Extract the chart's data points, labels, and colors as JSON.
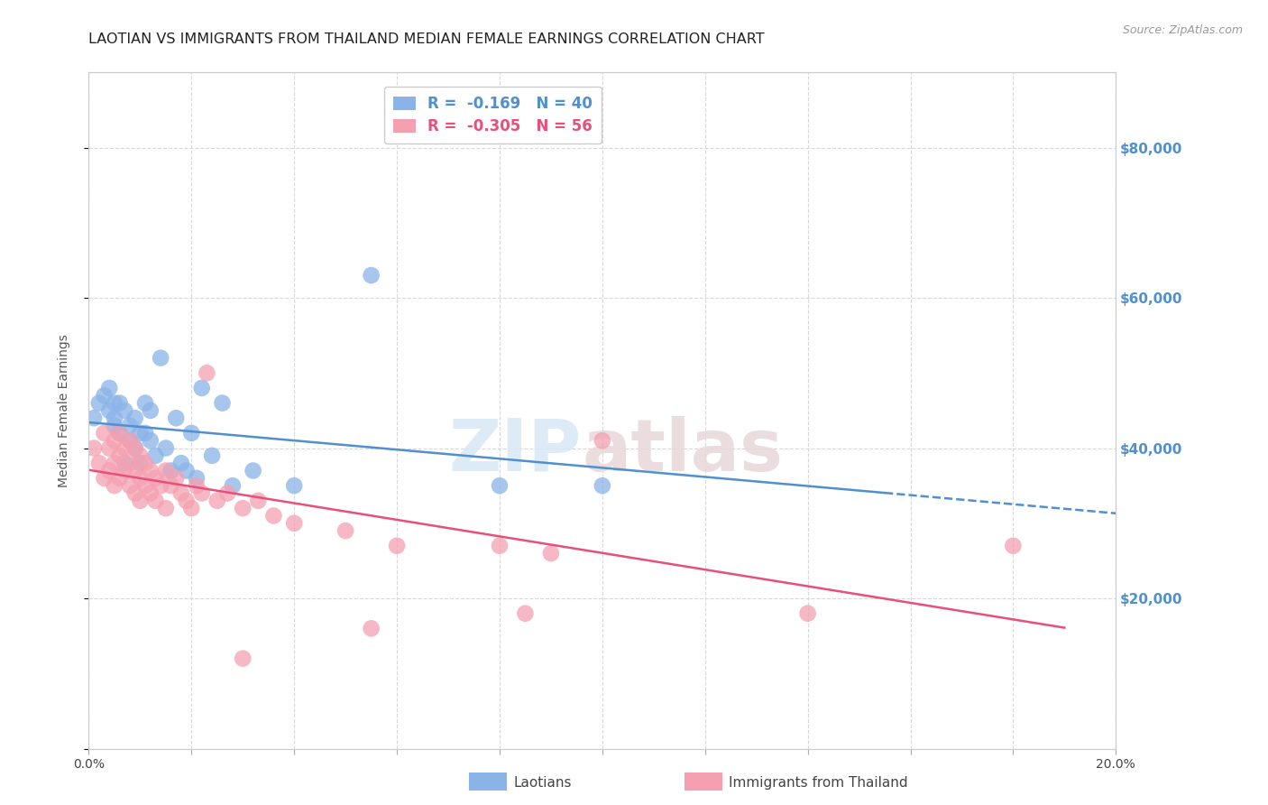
{
  "title": "LAOTIAN VS IMMIGRANTS FROM THAILAND MEDIAN FEMALE EARNINGS CORRELATION CHART",
  "source": "Source: ZipAtlas.com",
  "ylabel": "Median Female Earnings",
  "xlim": [
    0.0,
    0.2
  ],
  "ylim": [
    0,
    90000
  ],
  "yticks": [
    0,
    20000,
    40000,
    60000,
    80000
  ],
  "xticks": [
    0.0,
    0.02,
    0.04,
    0.06,
    0.08,
    0.1,
    0.12,
    0.14,
    0.16,
    0.18,
    0.2
  ],
  "legend_blue_label": "R =  -0.169   N = 40",
  "legend_pink_label": "R =  -0.305   N = 56",
  "blue_color": "#8ab4e8",
  "pink_color": "#f4a0b0",
  "blue_line_color": "#5090d0",
  "pink_line_color": "#e8507a",
  "watermark_zip": "ZIP",
  "watermark_atlas": "atlas",
  "blue_scatter_x": [
    0.001,
    0.002,
    0.003,
    0.004,
    0.004,
    0.005,
    0.005,
    0.005,
    0.006,
    0.006,
    0.007,
    0.007,
    0.008,
    0.008,
    0.009,
    0.009,
    0.01,
    0.01,
    0.011,
    0.011,
    0.012,
    0.012,
    0.013,
    0.014,
    0.015,
    0.016,
    0.017,
    0.018,
    0.019,
    0.02,
    0.021,
    0.022,
    0.024,
    0.026,
    0.028,
    0.032,
    0.04,
    0.055,
    0.08,
    0.1
  ],
  "blue_scatter_y": [
    44000,
    46000,
    47000,
    45000,
    48000,
    43000,
    46000,
    44000,
    42000,
    46000,
    45000,
    38000,
    43000,
    41000,
    44000,
    40000,
    42000,
    38000,
    46000,
    42000,
    41000,
    45000,
    39000,
    52000,
    40000,
    37000,
    44000,
    38000,
    37000,
    42000,
    36000,
    48000,
    39000,
    46000,
    35000,
    37000,
    35000,
    63000,
    35000,
    35000
  ],
  "pink_scatter_x": [
    0.001,
    0.002,
    0.003,
    0.003,
    0.004,
    0.004,
    0.005,
    0.005,
    0.005,
    0.006,
    0.006,
    0.006,
    0.007,
    0.007,
    0.008,
    0.008,
    0.008,
    0.009,
    0.009,
    0.009,
    0.01,
    0.01,
    0.01,
    0.011,
    0.011,
    0.012,
    0.012,
    0.013,
    0.013,
    0.014,
    0.015,
    0.015,
    0.016,
    0.017,
    0.018,
    0.019,
    0.02,
    0.021,
    0.022,
    0.023,
    0.025,
    0.027,
    0.03,
    0.033,
    0.036,
    0.04,
    0.05,
    0.06,
    0.08,
    0.09,
    0.03,
    0.055,
    0.085,
    0.1,
    0.14,
    0.18
  ],
  "pink_scatter_y": [
    40000,
    38000,
    42000,
    36000,
    40000,
    37000,
    41000,
    38000,
    35000,
    42000,
    39000,
    36000,
    40000,
    37000,
    41000,
    38000,
    35000,
    40000,
    37000,
    34000,
    39000,
    36000,
    33000,
    38000,
    35000,
    37000,
    34000,
    36000,
    33000,
    35000,
    37000,
    32000,
    35000,
    36000,
    34000,
    33000,
    32000,
    35000,
    34000,
    50000,
    33000,
    34000,
    32000,
    33000,
    31000,
    30000,
    29000,
    27000,
    27000,
    26000,
    12000,
    16000,
    18000,
    41000,
    18000,
    27000
  ],
  "background_color": "#ffffff",
  "grid_color": "#d8d8d8",
  "right_ytick_color": "#5090d0",
  "title_fontsize": 11.5,
  "axis_label_fontsize": 10,
  "tick_fontsize": 10,
  "blue_line_solid_end": 0.155,
  "blue_line_dashed_end": 0.2,
  "pink_line_solid_end": 0.19
}
